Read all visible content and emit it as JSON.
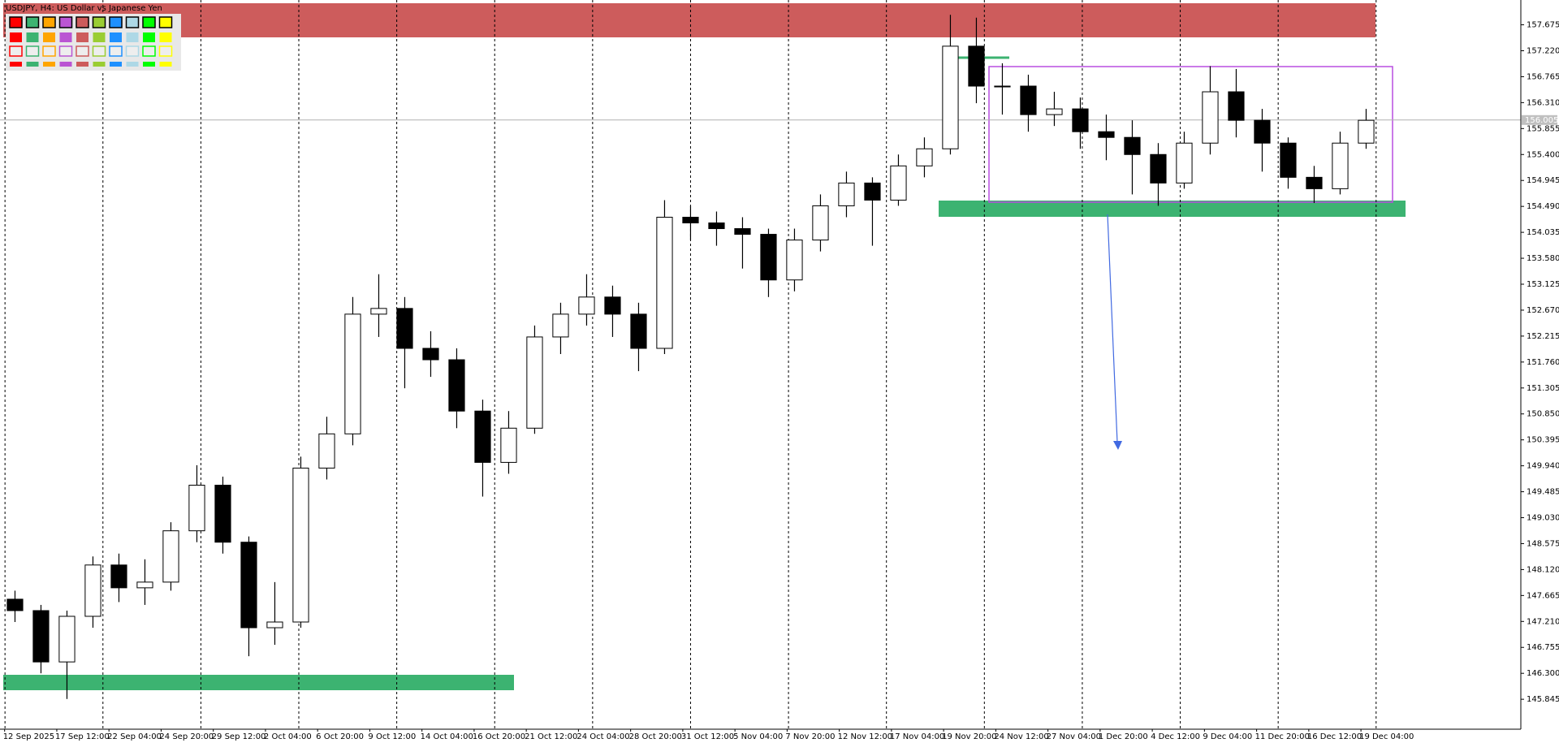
{
  "chart_data": {
    "type": "candlestick",
    "title": "USDJPY, H4:  US Dollar vs Japanese Yen",
    "x_labels": [
      "12 Sep 2025",
      "17 Sep 12:00",
      "22 Sep 04:00",
      "24 Sep 20:00",
      "29 Sep 12:00",
      "2 Oct 04:00",
      "6 Oct 20:00",
      "9 Oct 12:00",
      "14 Oct 04:00",
      "16 Oct 20:00",
      "21 Oct 12:00",
      "24 Oct 04:00",
      "28 Oct 20:00",
      "31 Oct 12:00",
      "5 Nov 04:00",
      "7 Nov 20:00",
      "12 Nov 12:00",
      "17 Nov 04:00",
      "19 Nov 20:00",
      "24 Nov 12:00",
      "27 Nov 04:00",
      "1 Dec 20:00",
      "4 Dec 12:00",
      "9 Dec 04:00",
      "11 Dec 20:00",
      "16 Dec 12:00",
      "19 Dec 04:00"
    ],
    "open": [
      147.6,
      147.4,
      146.5,
      147.3,
      148.2,
      147.8,
      147.9,
      148.8,
      149.6,
      148.6,
      147.1,
      147.2,
      149.9,
      150.5,
      152.6,
      152.7,
      152.0,
      151.8,
      150.9,
      150.0,
      150.6,
      152.2,
      152.6,
      152.9,
      152.6,
      152.0,
      154.3,
      154.2,
      154.1,
      154.0,
      153.2,
      153.9,
      154.5,
      154.9,
      154.6,
      155.2,
      155.5,
      157.3,
      156.6,
      156.6,
      156.1,
      156.2,
      155.8,
      155.7,
      155.4,
      154.9,
      155.6,
      156.5,
      156.0,
      155.6,
      155.0,
      154.8,
      155.6
    ],
    "high": [
      147.75,
      147.5,
      147.4,
      148.35,
      148.4,
      148.3,
      148.95,
      149.95,
      149.75,
      148.7,
      147.9,
      150.1,
      150.8,
      152.9,
      153.3,
      152.9,
      152.3,
      152.0,
      151.1,
      150.9,
      152.4,
      152.8,
      153.3,
      153.1,
      152.8,
      154.6,
      154.5,
      154.4,
      154.3,
      154.1,
      154.1,
      154.7,
      155.1,
      155.0,
      155.4,
      155.7,
      157.85,
      157.8,
      157.0,
      156.8,
      156.5,
      156.4,
      156.1,
      156.0,
      155.6,
      155.8,
      156.95,
      156.9,
      156.2,
      155.7,
      155.2,
      155.8,
      156.2
    ],
    "low": [
      147.2,
      146.3,
      145.85,
      147.1,
      147.55,
      147.5,
      147.75,
      148.6,
      148.4,
      146.6,
      146.8,
      147.1,
      149.7,
      150.3,
      152.2,
      151.3,
      151.5,
      150.6,
      149.4,
      149.8,
      150.5,
      151.9,
      152.4,
      152.2,
      151.6,
      151.9,
      153.9,
      153.8,
      153.4,
      152.9,
      153.0,
      153.7,
      154.3,
      153.8,
      154.5,
      155.0,
      155.4,
      156.3,
      156.1,
      155.8,
      155.9,
      155.5,
      155.3,
      154.7,
      154.5,
      154.8,
      155.4,
      155.7,
      155.1,
      154.8,
      154.55,
      154.7,
      155.5
    ],
    "close": [
      147.4,
      146.5,
      147.3,
      148.2,
      147.8,
      147.9,
      148.8,
      149.6,
      148.6,
      147.1,
      147.2,
      149.9,
      150.5,
      152.6,
      152.7,
      152.0,
      151.8,
      150.9,
      150.0,
      150.6,
      152.2,
      152.6,
      152.9,
      152.6,
      152.0,
      154.3,
      154.2,
      154.1,
      154.0,
      153.2,
      153.9,
      154.5,
      154.9,
      154.6,
      155.2,
      155.5,
      157.3,
      156.6,
      156.6,
      156.1,
      156.2,
      155.8,
      155.7,
      155.4,
      154.9,
      155.6,
      156.5,
      156.0,
      155.6,
      155.0,
      154.8,
      155.6,
      156.0
    ],
    "up_color": "#ffffff",
    "down_color": "#000000",
    "current_price": 156.005,
    "ylim": [
      145.32,
      158.11
    ],
    "yticks": [
      157.675,
      {
        "value": 157.22,
        "label": "157.220"
      },
      156.765,
      {
        "value": 156.31,
        "label": "156.310"
      },
      155.855,
      {
        "value": 155.4,
        "label": "155.400"
      },
      154.945,
      {
        "value": 154.49,
        "label": "154.490"
      },
      154.035,
      {
        "value": 153.58,
        "label": "153.580"
      },
      153.125,
      {
        "value": 152.67,
        "label": "152.670"
      },
      152.215,
      {
        "value": 151.76,
        "label": "151.760"
      },
      151.305,
      {
        "value": 150.85,
        "label": "150.850"
      },
      150.395,
      {
        "value": 149.94,
        "label": "149.940"
      },
      149.485,
      {
        "value": 149.03,
        "label": "149.030"
      },
      148.575,
      {
        "value": 148.12,
        "label": "148.120"
      },
      147.665,
      {
        "value": 147.21,
        "label": "147.210"
      },
      146.755,
      {
        "value": 146.3,
        "label": "146.300"
      },
      145.845
    ]
  }
}
